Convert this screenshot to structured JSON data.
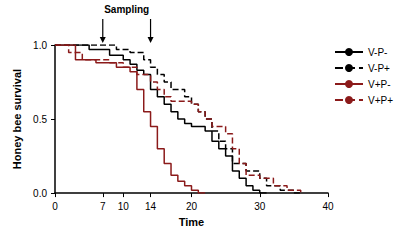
{
  "chart_data": {
    "type": "line",
    "x_label": "Time",
    "y_label": "Honey bee survival",
    "annotation": {
      "text": "Sampling",
      "x": [
        7,
        14
      ]
    },
    "x": [
      0,
      1,
      2,
      3,
      4,
      5,
      6,
      7,
      8,
      9,
      10,
      11,
      12,
      13,
      14,
      15,
      16,
      17,
      18,
      19,
      20,
      21,
      22,
      23,
      24,
      25,
      26,
      27,
      28,
      29,
      30,
      31,
      32,
      33,
      34,
      35,
      36
    ],
    "series": [
      {
        "name": "V-P-",
        "color": "#000000",
        "line_style": "solid",
        "values": [
          1,
          1,
          1,
          1,
          1,
          0.97,
          0.97,
          0.97,
          0.93,
          0.93,
          0.9,
          0.87,
          0.83,
          0.8,
          0.7,
          0.65,
          0.6,
          0.55,
          0.5,
          0.47,
          0.45,
          0.45,
          0.42,
          0.35,
          0.3,
          0.25,
          0.15,
          0.1,
          0.05,
          0.02,
          0,
          null,
          null,
          null,
          null,
          null,
          null
        ]
      },
      {
        "name": "V-P+",
        "color": "#000000",
        "line_style": "dashed",
        "values": [
          1,
          1,
          1,
          1,
          1,
          1,
          1,
          1,
          1,
          0.97,
          0.97,
          0.95,
          0.95,
          0.9,
          0.85,
          0.8,
          0.75,
          0.7,
          0.7,
          0.65,
          0.6,
          0.55,
          0.5,
          0.42,
          0.35,
          0.3,
          0.2,
          0.2,
          0.15,
          0.15,
          0.1,
          0.05,
          0.05,
          0.02,
          0.02,
          0,
          null
        ]
      },
      {
        "name": "V+P-",
        "color": "#8b1a1a",
        "line_style": "solid",
        "values": [
          1,
          1,
          1,
          0.9,
          0.9,
          0.9,
          0.88,
          0.88,
          0.88,
          0.85,
          0.85,
          0.82,
          0.7,
          0.55,
          0.45,
          0.3,
          0.2,
          0.12,
          0.08,
          0.05,
          0.02,
          0,
          null,
          null,
          null,
          null,
          null,
          null,
          null,
          null,
          null,
          null,
          null,
          null,
          null,
          null,
          null
        ]
      },
      {
        "name": "V+P+",
        "color": "#8b1a1a",
        "line_style": "dashed",
        "values": [
          1,
          1,
          0.95,
          0.95,
          0.9,
          0.9,
          0.9,
          0.9,
          0.88,
          0.88,
          0.85,
          0.85,
          0.8,
          0.8,
          0.75,
          0.7,
          0.65,
          0.62,
          0.62,
          0.62,
          0.6,
          0.55,
          0.5,
          0.45,
          0.45,
          0.4,
          0.3,
          0.2,
          0.12,
          0.12,
          0.1,
          0.1,
          0.05,
          0.05,
          0.02,
          0.02,
          0
        ]
      }
    ],
    "xlim": [
      0,
      40
    ],
    "xticks": [
      0,
      7,
      10,
      14,
      20,
      30,
      40
    ],
    "ylim": [
      0,
      1
    ],
    "yticks": [
      {
        "value": 0,
        "label": "0.0"
      },
      {
        "value": 0.5,
        "label": "0.5"
      },
      {
        "value": 1,
        "label": "1.0"
      }
    ],
    "grid": false,
    "legend": "right"
  }
}
